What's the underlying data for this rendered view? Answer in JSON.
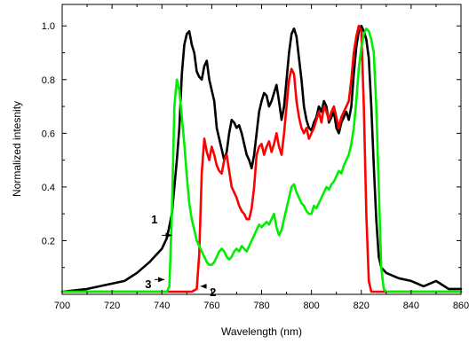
{
  "chart_data": {
    "type": "line",
    "title": "",
    "xlabel": "Wavelength (nm)",
    "ylabel": "Normalized intesnity",
    "xlim": [
      700,
      860
    ],
    "ylim": [
      0,
      1.08
    ],
    "xticks": [
      700,
      720,
      740,
      760,
      780,
      800,
      820,
      840,
      860
    ],
    "xtick_labels": [
      "700",
      "720",
      "740",
      "760",
      "780",
      "800",
      "820",
      "840",
      "860"
    ],
    "yticks": [
      0.2,
      0.4,
      0.6,
      0.8,
      1.0
    ],
    "ytick_labels": [
      "0.2",
      "0.4",
      "0.6",
      "0.8",
      "1.0"
    ],
    "grid": false,
    "series": [
      {
        "name": "1",
        "color": "#000000",
        "points": [
          [
            700,
            0.01
          ],
          [
            710,
            0.02
          ],
          [
            720,
            0.04
          ],
          [
            725,
            0.05
          ],
          [
            730,
            0.08
          ],
          [
            735,
            0.12
          ],
          [
            740,
            0.17
          ],
          [
            742,
            0.21
          ],
          [
            744,
            0.3
          ],
          [
            746,
            0.5
          ],
          [
            747,
            0.62
          ],
          [
            748,
            0.82
          ],
          [
            749,
            0.93
          ],
          [
            750,
            0.97
          ],
          [
            751,
            0.98
          ],
          [
            752,
            0.93
          ],
          [
            753,
            0.9
          ],
          [
            754,
            0.83
          ],
          [
            755,
            0.81
          ],
          [
            756,
            0.8
          ],
          [
            757,
            0.85
          ],
          [
            758,
            0.87
          ],
          [
            759,
            0.8
          ],
          [
            760,
            0.76
          ],
          [
            761,
            0.72
          ],
          [
            762,
            0.62
          ],
          [
            763,
            0.58
          ],
          [
            764,
            0.54
          ],
          [
            765,
            0.5
          ],
          [
            766,
            0.53
          ],
          [
            767,
            0.6
          ],
          [
            768,
            0.65
          ],
          [
            769,
            0.64
          ],
          [
            770,
            0.62
          ],
          [
            771,
            0.63
          ],
          [
            772,
            0.6
          ],
          [
            773,
            0.56
          ],
          [
            774,
            0.52
          ],
          [
            775,
            0.5
          ],
          [
            776,
            0.47
          ],
          [
            777,
            0.52
          ],
          [
            778,
            0.6
          ],
          [
            779,
            0.68
          ],
          [
            780,
            0.72
          ],
          [
            781,
            0.75
          ],
          [
            782,
            0.74
          ],
          [
            783,
            0.7
          ],
          [
            784,
            0.72
          ],
          [
            785,
            0.75
          ],
          [
            786,
            0.78
          ],
          [
            787,
            0.72
          ],
          [
            788,
            0.65
          ],
          [
            789,
            0.7
          ],
          [
            790,
            0.8
          ],
          [
            791,
            0.9
          ],
          [
            792,
            0.97
          ],
          [
            793,
            0.99
          ],
          [
            794,
            0.96
          ],
          [
            795,
            0.88
          ],
          [
            796,
            0.8
          ],
          [
            797,
            0.7
          ],
          [
            798,
            0.65
          ],
          [
            799,
            0.62
          ],
          [
            800,
            0.61
          ],
          [
            801,
            0.64
          ],
          [
            802,
            0.66
          ],
          [
            803,
            0.7
          ],
          [
            804,
            0.68
          ],
          [
            805,
            0.72
          ],
          [
            806,
            0.7
          ],
          [
            807,
            0.64
          ],
          [
            808,
            0.66
          ],
          [
            809,
            0.68
          ],
          [
            810,
            0.62
          ],
          [
            811,
            0.6
          ],
          [
            812,
            0.64
          ],
          [
            813,
            0.66
          ],
          [
            814,
            0.68
          ],
          [
            815,
            0.65
          ],
          [
            816,
            0.7
          ],
          [
            817,
            0.82
          ],
          [
            818,
            0.92
          ],
          [
            819,
            0.98
          ],
          [
            820,
            1.0
          ],
          [
            821,
            0.98
          ],
          [
            822,
            0.95
          ],
          [
            823,
            0.88
          ],
          [
            824,
            0.7
          ],
          [
            825,
            0.48
          ],
          [
            826,
            0.28
          ],
          [
            827,
            0.14
          ],
          [
            828,
            0.1
          ],
          [
            830,
            0.08
          ],
          [
            835,
            0.06
          ],
          [
            840,
            0.05
          ],
          [
            845,
            0.03
          ],
          [
            850,
            0.05
          ],
          [
            855,
            0.02
          ],
          [
            860,
            0.02
          ]
        ]
      },
      {
        "name": "2",
        "color": "#ff0000",
        "points": [
          [
            700,
            0.01
          ],
          [
            720,
            0.01
          ],
          [
            740,
            0.01
          ],
          [
            752,
            0.01
          ],
          [
            754,
            0.02
          ],
          [
            755,
            0.15
          ],
          [
            756,
            0.45
          ],
          [
            757,
            0.58
          ],
          [
            758,
            0.53
          ],
          [
            759,
            0.5
          ],
          [
            760,
            0.55
          ],
          [
            761,
            0.52
          ],
          [
            762,
            0.48
          ],
          [
            763,
            0.46
          ],
          [
            764,
            0.45
          ],
          [
            765,
            0.5
          ],
          [
            766,
            0.52
          ],
          [
            767,
            0.46
          ],
          [
            768,
            0.4
          ],
          [
            769,
            0.38
          ],
          [
            770,
            0.36
          ],
          [
            771,
            0.33
          ],
          [
            772,
            0.31
          ],
          [
            773,
            0.3
          ],
          [
            774,
            0.28
          ],
          [
            775,
            0.28
          ],
          [
            776,
            0.32
          ],
          [
            777,
            0.4
          ],
          [
            778,
            0.52
          ],
          [
            779,
            0.55
          ],
          [
            780,
            0.56
          ],
          [
            781,
            0.52
          ],
          [
            782,
            0.55
          ],
          [
            783,
            0.57
          ],
          [
            784,
            0.53
          ],
          [
            785,
            0.56
          ],
          [
            786,
            0.6
          ],
          [
            787,
            0.55
          ],
          [
            788,
            0.52
          ],
          [
            789,
            0.6
          ],
          [
            790,
            0.7
          ],
          [
            791,
            0.8
          ],
          [
            792,
            0.84
          ],
          [
            793,
            0.82
          ],
          [
            794,
            0.72
          ],
          [
            795,
            0.66
          ],
          [
            796,
            0.62
          ],
          [
            797,
            0.6
          ],
          [
            798,
            0.62
          ],
          [
            799,
            0.58
          ],
          [
            800,
            0.6
          ],
          [
            801,
            0.62
          ],
          [
            802,
            0.65
          ],
          [
            803,
            0.68
          ],
          [
            804,
            0.64
          ],
          [
            805,
            0.7
          ],
          [
            806,
            0.68
          ],
          [
            807,
            0.65
          ],
          [
            808,
            0.68
          ],
          [
            809,
            0.7
          ],
          [
            810,
            0.66
          ],
          [
            811,
            0.62
          ],
          [
            812,
            0.66
          ],
          [
            813,
            0.68
          ],
          [
            814,
            0.7
          ],
          [
            815,
            0.72
          ],
          [
            816,
            0.8
          ],
          [
            817,
            0.9
          ],
          [
            818,
            0.96
          ],
          [
            819,
            1.0
          ],
          [
            820,
            0.98
          ],
          [
            821,
            0.7
          ],
          [
            822,
            0.3
          ],
          [
            823,
            0.05
          ],
          [
            824,
            0.01
          ],
          [
            830,
            0.01
          ],
          [
            860,
            0.01
          ]
        ]
      },
      {
        "name": "3",
        "color": "#00ee00",
        "points": [
          [
            700,
            0.01
          ],
          [
            720,
            0.01
          ],
          [
            735,
            0.01
          ],
          [
            742,
            0.01
          ],
          [
            743,
            0.03
          ],
          [
            744,
            0.3
          ],
          [
            745,
            0.7
          ],
          [
            746,
            0.8
          ],
          [
            747,
            0.76
          ],
          [
            748,
            0.66
          ],
          [
            749,
            0.56
          ],
          [
            750,
            0.44
          ],
          [
            751,
            0.34
          ],
          [
            752,
            0.28
          ],
          [
            753,
            0.24
          ],
          [
            754,
            0.2
          ],
          [
            755,
            0.18
          ],
          [
            756,
            0.16
          ],
          [
            757,
            0.14
          ],
          [
            758,
            0.12
          ],
          [
            759,
            0.11
          ],
          [
            760,
            0.11
          ],
          [
            761,
            0.12
          ],
          [
            762,
            0.14
          ],
          [
            763,
            0.16
          ],
          [
            764,
            0.17
          ],
          [
            765,
            0.16
          ],
          [
            766,
            0.14
          ],
          [
            767,
            0.13
          ],
          [
            768,
            0.14
          ],
          [
            769,
            0.16
          ],
          [
            770,
            0.17
          ],
          [
            771,
            0.16
          ],
          [
            772,
            0.18
          ],
          [
            773,
            0.17
          ],
          [
            774,
            0.16
          ],
          [
            775,
            0.18
          ],
          [
            776,
            0.2
          ],
          [
            777,
            0.22
          ],
          [
            778,
            0.24
          ],
          [
            779,
            0.26
          ],
          [
            780,
            0.25
          ],
          [
            781,
            0.26
          ],
          [
            782,
            0.27
          ],
          [
            783,
            0.26
          ],
          [
            784,
            0.28
          ],
          [
            785,
            0.3
          ],
          [
            786,
            0.25
          ],
          [
            787,
            0.22
          ],
          [
            788,
            0.24
          ],
          [
            789,
            0.28
          ],
          [
            790,
            0.32
          ],
          [
            791,
            0.36
          ],
          [
            792,
            0.4
          ],
          [
            793,
            0.41
          ],
          [
            794,
            0.38
          ],
          [
            795,
            0.36
          ],
          [
            796,
            0.34
          ],
          [
            797,
            0.33
          ],
          [
            798,
            0.31
          ],
          [
            799,
            0.3
          ],
          [
            800,
            0.3
          ],
          [
            801,
            0.33
          ],
          [
            802,
            0.32
          ],
          [
            803,
            0.34
          ],
          [
            804,
            0.36
          ],
          [
            805,
            0.38
          ],
          [
            806,
            0.4
          ],
          [
            807,
            0.39
          ],
          [
            808,
            0.41
          ],
          [
            809,
            0.42
          ],
          [
            810,
            0.44
          ],
          [
            811,
            0.46
          ],
          [
            812,
            0.45
          ],
          [
            813,
            0.48
          ],
          [
            814,
            0.5
          ],
          [
            815,
            0.52
          ],
          [
            816,
            0.56
          ],
          [
            817,
            0.62
          ],
          [
            818,
            0.72
          ],
          [
            819,
            0.84
          ],
          [
            820,
            0.92
          ],
          [
            821,
            0.97
          ],
          [
            822,
            0.99
          ],
          [
            823,
            0.98
          ],
          [
            824,
            0.95
          ],
          [
            825,
            0.9
          ],
          [
            826,
            0.7
          ],
          [
            827,
            0.4
          ],
          [
            828,
            0.1
          ],
          [
            829,
            0.02
          ],
          [
            830,
            0.01
          ],
          [
            860,
            0.01
          ]
        ]
      }
    ],
    "annotations": [
      {
        "label": "1",
        "text_at": [
          737,
          0.28
        ],
        "arrow_from": [
          740,
          0.22
        ],
        "arrow_to": [
          744,
          0.22
        ]
      },
      {
        "label": "2",
        "text_at": [
          760.5,
          0.01
        ],
        "arrow_from": [
          758,
          0.03
        ],
        "arrow_to": [
          755.5,
          0.03
        ]
      },
      {
        "label": "3",
        "text_at": [
          734.5,
          0.04
        ],
        "arrow_from": [
          737,
          0.055
        ],
        "arrow_to": [
          741,
          0.055
        ]
      }
    ]
  }
}
